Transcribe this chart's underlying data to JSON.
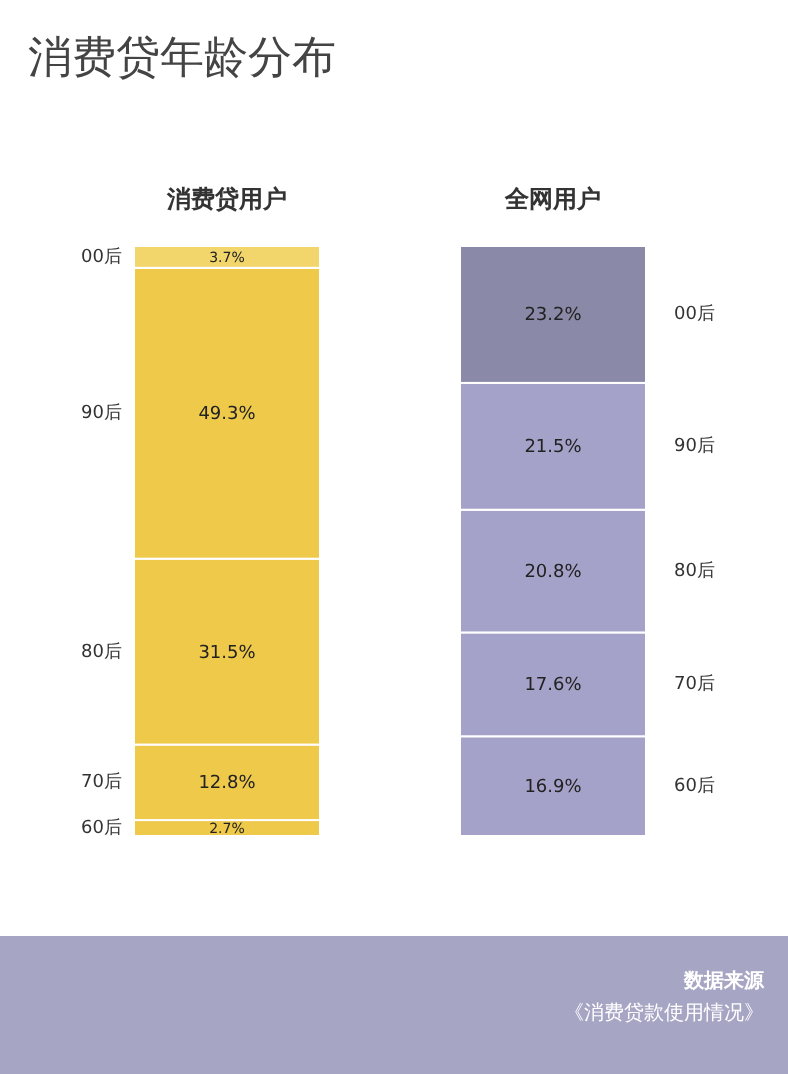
{
  "chart_data": {
    "type": "bar",
    "stacked": true,
    "title": "消费贷年龄分布",
    "categories": [
      "消费贷用户",
      "全网用户"
    ],
    "series": [
      {
        "name": "60后",
        "values": [
          2.7,
          16.9
        ],
        "value_labels": [
          "2.7%",
          "16.9%"
        ],
        "colors": [
          "#eec94a",
          "#a4a2c8"
        ]
      },
      {
        "name": "70后",
        "values": [
          12.8,
          17.6
        ],
        "value_labels": [
          "12.8%",
          "17.6%"
        ],
        "colors": [
          "#eec94a",
          "#a4a2c8"
        ]
      },
      {
        "name": "80后",
        "values": [
          31.5,
          20.8
        ],
        "value_labels": [
          "31.5%",
          "20.8%"
        ],
        "colors": [
          "#eec94a",
          "#a4a2c8"
        ]
      },
      {
        "name": "90后",
        "values": [
          49.3,
          21.5
        ],
        "value_labels": [
          "49.3%",
          "21.5%"
        ],
        "colors": [
          "#eec94a",
          "#a4a2c8"
        ]
      },
      {
        "name": "00后",
        "values": [
          3.7,
          23.2
        ],
        "value_labels": [
          "3.7%",
          "23.2%"
        ],
        "colors": [
          "#f2d66b",
          "#8a89a8"
        ]
      }
    ],
    "annotations": [
      "数据来源",
      "《消费贷款使用情况》"
    ]
  }
}
